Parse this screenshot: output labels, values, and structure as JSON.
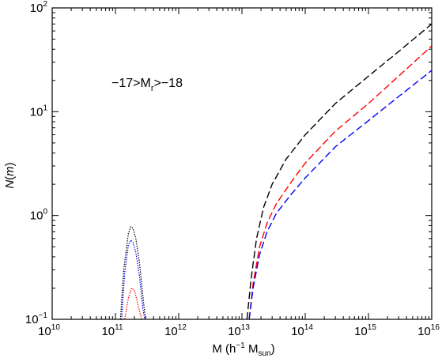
{
  "chart_data": {
    "type": "line",
    "title": "",
    "annotation": {
      "prefix": "−17>M",
      "sub": "r",
      "suffix": ">−18"
    },
    "xlabel": {
      "prefix": "M (h",
      "sup": "−1",
      "mid": " M",
      "sub": "sun",
      "suffix": ")"
    },
    "ylabel": {
      "prefix": "N",
      "italic_open": "(",
      "italic_var": "m",
      "italic_close": ")"
    },
    "x_scale": "log",
    "y_scale": "log",
    "xlim": [
      10000000000.0,
      1e+16
    ],
    "ylim": [
      0.1,
      100
    ],
    "x_ticks": [
      {
        "value": 10000000000.0,
        "base": "10",
        "exp": "10"
      },
      {
        "value": 100000000000.0,
        "base": "10",
        "exp": "11"
      },
      {
        "value": 1000000000000.0,
        "base": "10",
        "exp": "12"
      },
      {
        "value": 10000000000000.0,
        "base": "10",
        "exp": "13"
      },
      {
        "value": 100000000000000.0,
        "base": "10",
        "exp": "14"
      },
      {
        "value": 1000000000000000.0,
        "base": "10",
        "exp": "15"
      },
      {
        "value": 1e+16,
        "base": "10",
        "exp": "16"
      }
    ],
    "y_ticks": [
      {
        "value": 0.1,
        "base": "10",
        "exp": "−1"
      },
      {
        "value": 1,
        "base": "10",
        "exp": "0"
      },
      {
        "value": 10,
        "base": "10",
        "exp": "1"
      },
      {
        "value": 100,
        "base": "10",
        "exp": "2"
      }
    ],
    "grid": false,
    "legend": "none",
    "series": [
      {
        "component": "central",
        "color": "#000000",
        "style": "dotted",
        "x": [
          120000000000.0,
          135000000000.0,
          160000000000.0,
          175000000000.0,
          190000000000.0,
          210000000000.0,
          240000000000.0,
          280000000000.0,
          300000000000.0
        ],
        "y": [
          0.1,
          0.3,
          0.67,
          0.78,
          0.75,
          0.6,
          0.35,
          0.14,
          0.1
        ]
      },
      {
        "component": "central",
        "color": "#0000ff",
        "style": "dotted",
        "x": [
          125000000000.0,
          140000000000.0,
          160000000000.0,
          175000000000.0,
          190000000000.0,
          210000000000.0,
          240000000000.0,
          270000000000.0,
          290000000000.0
        ],
        "y": [
          0.1,
          0.28,
          0.52,
          0.58,
          0.55,
          0.44,
          0.26,
          0.13,
          0.1
        ]
      },
      {
        "component": "central",
        "color": "#ff0000",
        "style": "dotted",
        "x": [
          140000000000.0,
          160000000000.0,
          180000000000.0,
          200000000000.0,
          220000000000.0,
          240000000000.0,
          260000000000.0
        ],
        "y": [
          0.1,
          0.16,
          0.2,
          0.19,
          0.15,
          0.12,
          0.1
        ]
      },
      {
        "component": "satellite",
        "color": "#000000",
        "style": "dashed",
        "x": [
          12000000000000.0,
          14000000000000.0,
          17000000000000.0,
          22000000000000.0,
          30000000000000.0,
          50000000000000.0,
          100000000000000.0,
          300000000000000.0,
          1000000000000000.0,
          3000000000000000.0,
          1e+16
        ],
        "y": [
          0.1,
          0.25,
          0.6,
          1.2,
          2.0,
          3.5,
          6.0,
          12,
          22,
          38,
          70
        ]
      },
      {
        "component": "satellite",
        "color": "#ff0000",
        "style": "dashed",
        "x": [
          13000000000000.0,
          15000000000000.0,
          19000000000000.0,
          25000000000000.0,
          35000000000000.0,
          60000000000000.0,
          100000000000000.0,
          300000000000000.0,
          1000000000000000.0,
          3000000000000000.0,
          1e+16
        ],
        "y": [
          0.1,
          0.22,
          0.5,
          0.85,
          1.3,
          2.1,
          3.2,
          6.5,
          12,
          22,
          43
        ]
      },
      {
        "component": "satellite",
        "color": "#0000ff",
        "style": "dashed",
        "x": [
          13000000000000.0,
          15000000000000.0,
          19000000000000.0,
          25000000000000.0,
          35000000000000.0,
          60000000000000.0,
          100000000000000.0,
          300000000000000.0,
          1000000000000000.0,
          3000000000000000.0,
          1e+16
        ],
        "y": [
          0.1,
          0.2,
          0.42,
          0.7,
          1.05,
          1.6,
          2.3,
          4.6,
          8.2,
          14,
          25
        ]
      }
    ]
  }
}
